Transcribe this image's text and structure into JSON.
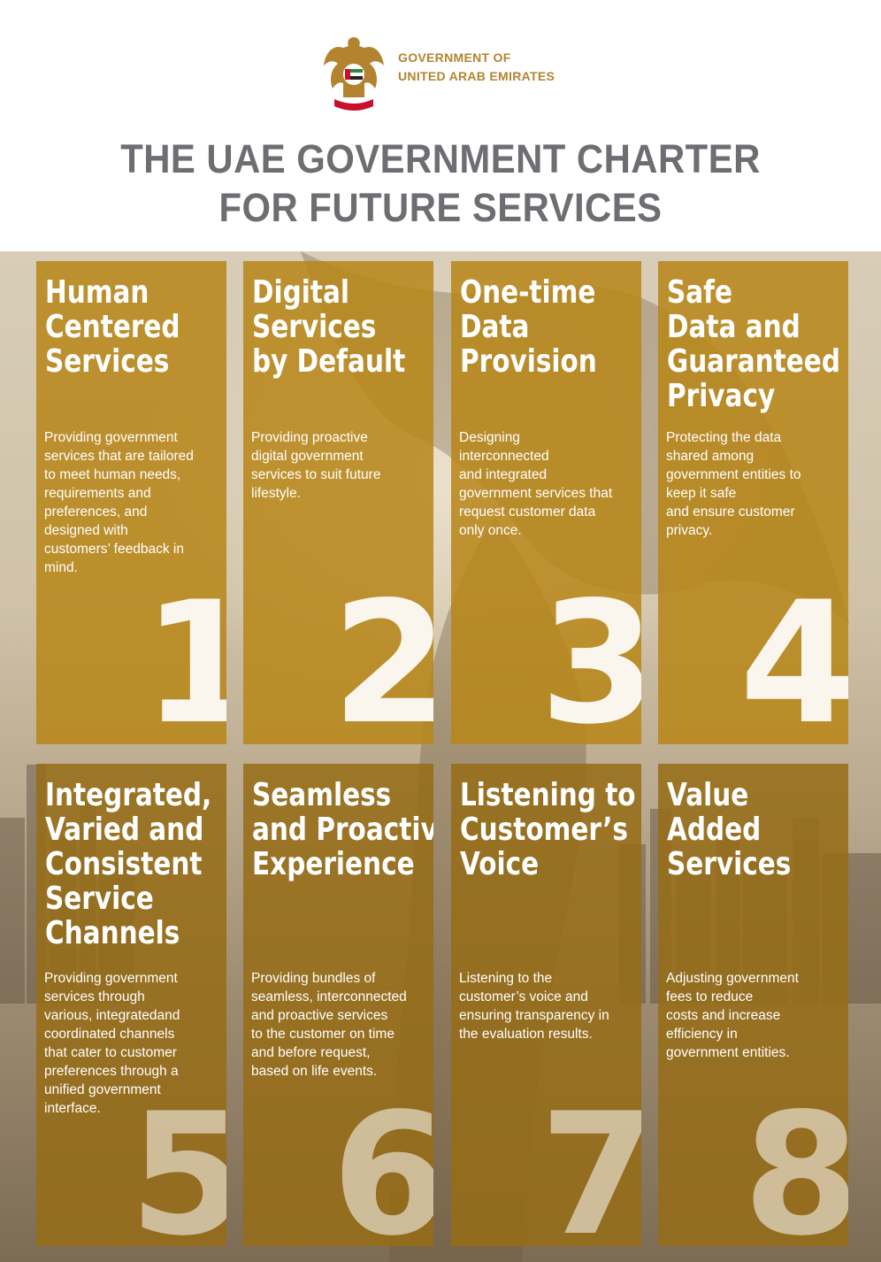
{
  "header": {
    "org_line1": "GOVERNMENT OF",
    "org_line2": "UNITED ARAB EMIRATES",
    "emblem_icon": "uae-falcon-emblem-icon",
    "title_line1": "THE UAE GOVERNMENT CHARTER",
    "title_line2": "FOR FUTURE SERVICES"
  },
  "colors": {
    "title_gray": "#6d6e71",
    "gold": "#b48330",
    "card_gold": "#b88618"
  },
  "cards": [
    {
      "title": [
        "Human",
        "Centered",
        "Services"
      ],
      "description": [
        "Providing government",
        "services that are tailored",
        "to meet human needs,",
        "requirements and",
        "preferences, and",
        "designed with",
        "customers’ feedback in",
        "mind."
      ],
      "number": "1"
    },
    {
      "title": [
        "Digital",
        "Services",
        "by Default"
      ],
      "description": [
        "Providing proactive",
        "digital government",
        "services to suit future",
        "lifestyle."
      ],
      "number": "2"
    },
    {
      "title": [
        "One-time",
        "Data",
        "Provision"
      ],
      "description": [
        "Designing",
        "interconnected",
        "and integrated",
        "government services that",
        "request customer data",
        "only once."
      ],
      "number": "3"
    },
    {
      "title": [
        "Safe",
        "Data and",
        "Guaranteed",
        "Privacy"
      ],
      "description": [
        "Protecting the data",
        "shared among",
        "government entities to",
        "keep it safe",
        "and ensure customer",
        "privacy."
      ],
      "number": "4"
    },
    {
      "title": [
        "Integrated,",
        "Varied and",
        "Consistent",
        "Service",
        "Channels"
      ],
      "description": [
        "Providing government",
        "services through",
        "various, integratedand",
        "coordinated channels",
        "that cater to customer",
        "preferences through a",
        "unified government",
        "interface."
      ],
      "number": "5"
    },
    {
      "title": [
        "Seamless",
        "and Proactive",
        "Experience"
      ],
      "description": [
        "Providing bundles of",
        "seamless, interconnected",
        "and proactive services",
        "to the customer on time",
        "and before request,",
        "based on life events."
      ],
      "number": "6"
    },
    {
      "title": [
        "Listening to",
        "Customer’s",
        "Voice"
      ],
      "description": [
        "Listening to the",
        "customer’s voice and",
        "ensuring transparency in",
        "the evaluation results."
      ],
      "number": "7"
    },
    {
      "title": [
        "Value",
        "Added",
        "Services"
      ],
      "description": [
        "Adjusting government",
        "fees to reduce",
        "costs and increase",
        "efficiency in",
        "government entities."
      ],
      "number": "8"
    }
  ]
}
